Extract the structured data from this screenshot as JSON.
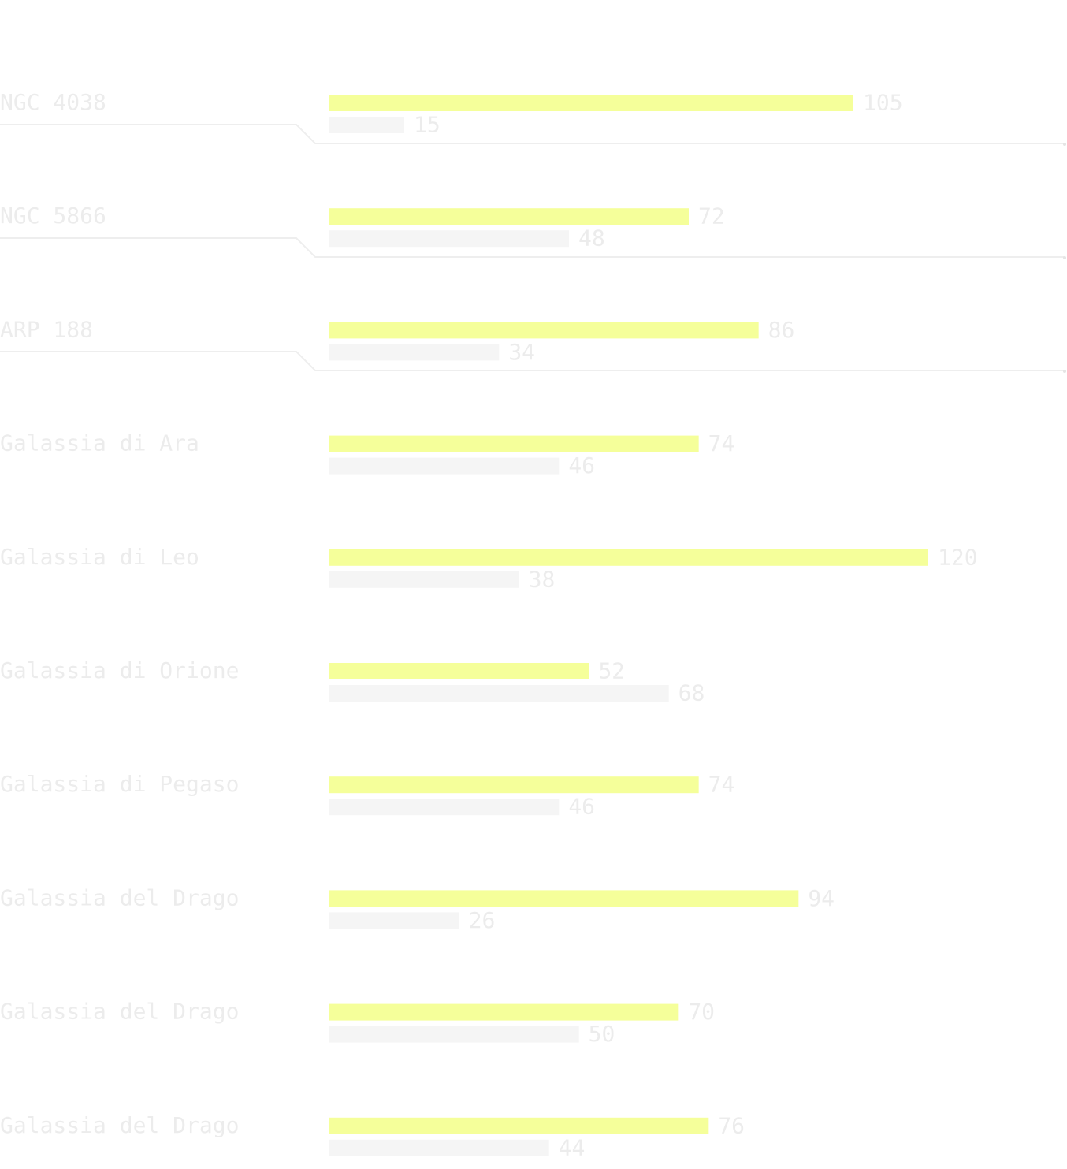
{
  "chart_data": {
    "type": "bar",
    "orientation": "horizontal",
    "categories": [
      "NGC 4038",
      "NGC 5866",
      "ARP 188",
      "Galassia di Ara",
      "Galassia di Leo",
      "Galassia di Orione",
      "Galassia di Pegaso",
      "Galassia del Drago",
      "Galassia del Drago",
      "Galassia del Drago"
    ],
    "series": [
      {
        "color": "#f5ff9a",
        "values": [
          105,
          72,
          86,
          74,
          120,
          52,
          74,
          94,
          70,
          76
        ]
      },
      {
        "color": "#f5f5f5",
        "values": [
          15,
          48,
          34,
          46,
          38,
          68,
          46,
          26,
          50,
          44
        ]
      }
    ]
  }
}
